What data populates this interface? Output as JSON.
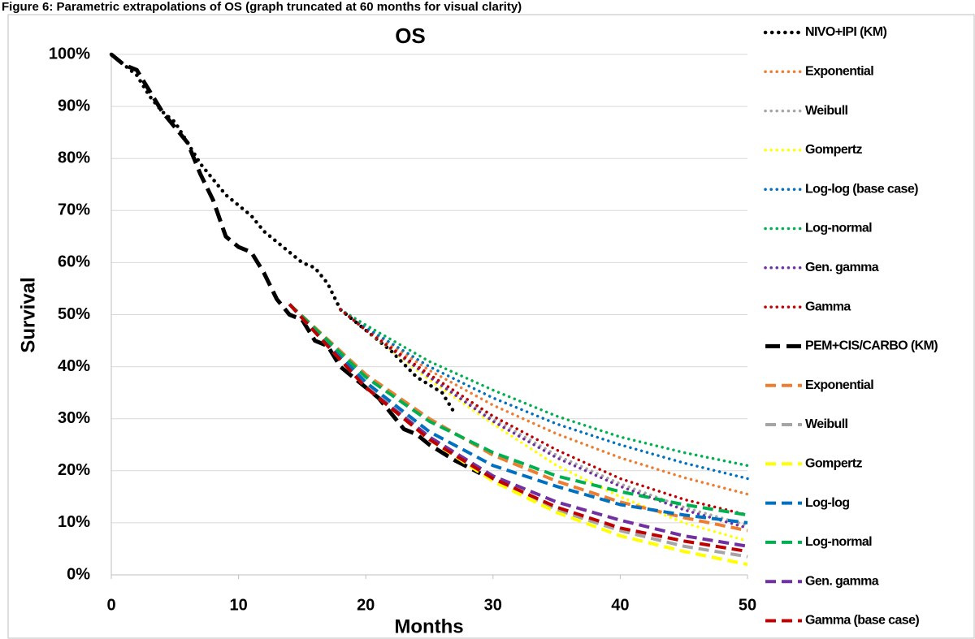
{
  "chart_data": {
    "type": "line",
    "caption": "Figure 6: Parametric extrapolations of OS (graph truncated at 60 months for visual clarity)",
    "title": "OS",
    "x_label": "Months",
    "y_label": "Survival",
    "xlim": [
      0,
      50
    ],
    "xticks": [
      0,
      10,
      20,
      30,
      40,
      50
    ],
    "ylim": [
      0,
      100
    ],
    "yticks": [
      {
        "value": 0,
        "label": "0%"
      },
      {
        "value": 10,
        "label": "10%"
      },
      {
        "value": 20,
        "label": "20%"
      },
      {
        "value": 30,
        "label": "30%"
      },
      {
        "value": 40,
        "label": "40%"
      },
      {
        "value": 50,
        "label": "50%"
      },
      {
        "value": 60,
        "label": "60%"
      },
      {
        "value": 70,
        "label": "70%"
      },
      {
        "value": 80,
        "label": "80%"
      },
      {
        "value": 90,
        "label": "90%"
      },
      {
        "value": 100,
        "label": "100%"
      }
    ],
    "grid": true,
    "legend": "right",
    "series": [
      {
        "name": "NIVO+IPI (KM)",
        "color": "#000000",
        "style": "dotted-km",
        "x": [
          0,
          1,
          2,
          3,
          4,
          5,
          6,
          7,
          8,
          9,
          10,
          11,
          12,
          13,
          14,
          15,
          16,
          17,
          18,
          19,
          20,
          22,
          24,
          26,
          27
        ],
        "values": [
          100,
          98,
          96,
          92,
          89,
          87,
          83,
          79,
          76,
          73,
          71,
          69,
          66,
          64,
          62,
          60,
          59,
          56,
          51,
          49,
          47,
          43,
          38,
          35,
          31
        ]
      },
      {
        "name": "Exponential",
        "color": "#ED7D31",
        "style": "dotted",
        "x": [
          18,
          20,
          25,
          30,
          35,
          40,
          45,
          50
        ],
        "values": [
          51,
          47.3,
          39.3,
          32.6,
          27.1,
          22.5,
          18.7,
          15.5
        ]
      },
      {
        "name": "Weibull",
        "color": "#A5A5A5",
        "style": "dotted",
        "x": [
          18,
          20,
          25,
          30,
          35,
          40,
          45,
          50
        ],
        "values": [
          51,
          47,
          38,
          30,
          23,
          17.5,
          13,
          9.5
        ]
      },
      {
        "name": "Gompertz",
        "color": "#FFFF00",
        "style": "dotted",
        "x": [
          18,
          20,
          25,
          30,
          35,
          40,
          45,
          50
        ],
        "values": [
          51,
          47,
          37.5,
          29,
          21,
          15,
          10,
          6.5
        ]
      },
      {
        "name": "Log-log (base case)",
        "color": "#0070C0",
        "style": "dotted",
        "x": [
          18,
          20,
          25,
          30,
          35,
          40,
          45,
          50
        ],
        "values": [
          51,
          47.5,
          40,
          34,
          29,
          25,
          21.5,
          18.5
        ]
      },
      {
        "name": "Log-normal",
        "color": "#00B050",
        "style": "dotted",
        "x": [
          18,
          20,
          25,
          30,
          35,
          40,
          45,
          50
        ],
        "values": [
          51,
          48,
          41,
          35.5,
          30.5,
          26.5,
          23.5,
          21
        ]
      },
      {
        "name": "Gen. gamma",
        "color": "#7030A0",
        "style": "dotted",
        "x": [
          18,
          20,
          25,
          30,
          35,
          40,
          45,
          50
        ],
        "values": [
          51,
          47,
          38,
          29.5,
          22.5,
          17,
          12.5,
          9
        ]
      },
      {
        "name": "Gamma",
        "color": "#C00000",
        "style": "dotted",
        "x": [
          18,
          20,
          25,
          30,
          35,
          40,
          45,
          50
        ],
        "values": [
          51,
          47,
          38.5,
          30.5,
          24,
          18.5,
          14.5,
          11.5
        ]
      },
      {
        "name": "PEM+CIS/CARBO (KM)",
        "color": "#000000",
        "style": "dashed-km",
        "x": [
          0,
          1,
          2,
          3,
          4,
          5,
          6,
          7,
          8,
          9,
          10,
          11,
          12,
          13,
          14,
          15,
          16,
          17,
          18,
          19,
          20,
          21,
          22,
          23,
          24,
          25,
          27,
          29
        ],
        "values": [
          100,
          98,
          97,
          93,
          89,
          86,
          83,
          77,
          72,
          65,
          63,
          62,
          58,
          53,
          50,
          49,
          45,
          44,
          40,
          38,
          36,
          34,
          31,
          28,
          27,
          25,
          22,
          19.5
        ]
      },
      {
        "name": "Exponential",
        "color": "#ED7D31",
        "style": "dashed",
        "x": [
          14,
          20,
          25,
          30,
          35,
          40,
          45,
          50
        ],
        "values": [
          52,
          38.5,
          30,
          23,
          18,
          14,
          11,
          8.5
        ]
      },
      {
        "name": "Weibull",
        "color": "#A5A5A5",
        "style": "dashed",
        "x": [
          14,
          20,
          25,
          30,
          35,
          40,
          45,
          50
        ],
        "values": [
          52,
          36.5,
          26.5,
          18.5,
          12.5,
          8.5,
          5.5,
          3.5
        ]
      },
      {
        "name": "Gompertz",
        "color": "#FFFF00",
        "style": "dashed",
        "x": [
          14,
          20,
          25,
          30,
          35,
          40,
          45,
          50
        ],
        "values": [
          52,
          36,
          26,
          18,
          12,
          7.5,
          4.5,
          2
        ]
      },
      {
        "name": "Log-log",
        "color": "#0070C0",
        "style": "dashed",
        "x": [
          14,
          20,
          25,
          30,
          35,
          40,
          45,
          50
        ],
        "values": [
          52,
          37,
          27.5,
          21,
          17,
          13.5,
          11.5,
          10
        ]
      },
      {
        "name": "Log-normal",
        "color": "#00B050",
        "style": "dashed",
        "x": [
          14,
          20,
          25,
          30,
          35,
          40,
          45,
          50
        ],
        "values": [
          52,
          38,
          29.5,
          23.5,
          19,
          16,
          13.5,
          11.5
        ]
      },
      {
        "name": "Gen. gamma",
        "color": "#7030A0",
        "style": "dashed",
        "x": [
          14,
          20,
          25,
          30,
          35,
          40,
          45,
          50
        ],
        "values": [
          52,
          36,
          26.5,
          19,
          14,
          10.5,
          7.5,
          5.5
        ]
      },
      {
        "name": "Gamma (base case)",
        "color": "#C00000",
        "style": "dashed",
        "x": [
          14,
          20,
          25,
          30,
          35,
          40,
          45,
          50
        ],
        "values": [
          52,
          36,
          26,
          18.5,
          13,
          9,
          6.5,
          4.5
        ]
      }
    ]
  }
}
